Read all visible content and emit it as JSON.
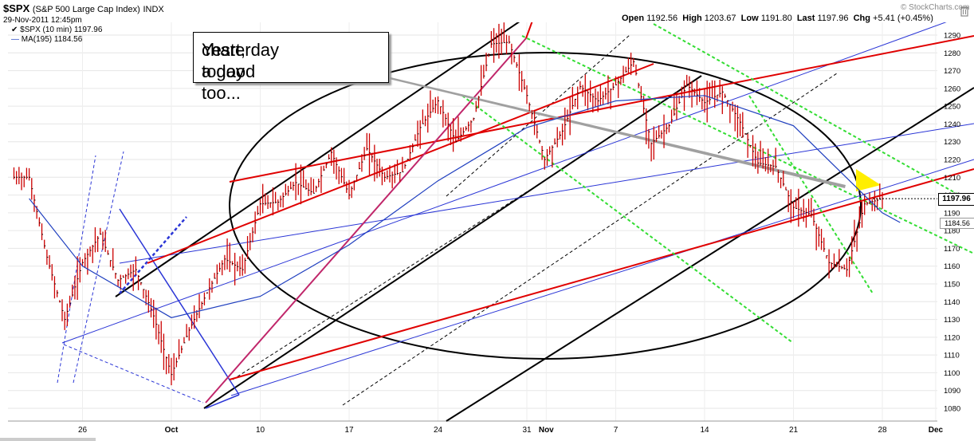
{
  "header": {
    "symbol": "$SPX",
    "description": "(S&P 500 Large Cap Index)",
    "exchange": "INDX",
    "datetime": "29-Nov-2011 12:45pm",
    "legend_price": "$SPX (10 min) 1197.96",
    "legend_ma": "MA(195) 1184.56",
    "brand": "© StockCharts.com",
    "ohlc": {
      "open_label": "Open",
      "open": "1192.56",
      "high_label": "High",
      "high": "1203.67",
      "low_label": "Low",
      "low": "1191.80",
      "last_label": "Last",
      "last": "1197.96",
      "chg_label": "Chg",
      "chg": "+5.41 (+0.45%)"
    }
  },
  "annotation": {
    "line1": "Yesterday a good",
    "line2": "chart, today too..."
  },
  "price_labels": {
    "last": "1197.96",
    "ma": "1184.56"
  },
  "colors": {
    "price": "#cc0000",
    "ma": "#1f3fbf",
    "red_channel": "#e00000",
    "blue_channel": "#2a35d6",
    "black_channel": "#000000",
    "green_channel": "#33dd33",
    "magenta_line": "#c0266a",
    "gray_arrow": "#a0a0a0",
    "highlight": "#ffee00"
  },
  "chart_data": {
    "type": "line",
    "title": "$SPX (S&P 500 Large Cap Index) INDX",
    "xlabel": "",
    "ylabel": "",
    "x_ticks": [
      "26",
      "Oct",
      "10",
      "17",
      "24",
      "31",
      "Nov",
      "7",
      "14",
      "21",
      "28",
      "Dec"
    ],
    "y_ticks": [
      1080,
      1090,
      1100,
      1110,
      1120,
      1130,
      1140,
      1150,
      1160,
      1170,
      1180,
      1190,
      1200,
      1210,
      1220,
      1230,
      1240,
      1250,
      1260,
      1270,
      1280,
      1290
    ],
    "ylim": [
      1073,
      1296
    ],
    "grid": true,
    "series": [
      {
        "name": "$SPX (10 min)",
        "style": "ohlc-bars",
        "x": [
          "Sep 21",
          "Sep 22",
          "Sep 23",
          "Sep 26",
          "Sep 27",
          "Sep 28",
          "Sep 29",
          "Sep 30",
          "Oct 3",
          "Oct 4",
          "Oct 5",
          "Oct 6",
          "Oct 7",
          "Oct 10",
          "Oct 11",
          "Oct 12",
          "Oct 13",
          "Oct 14",
          "Oct 17",
          "Oct 18",
          "Oct 19",
          "Oct 20",
          "Oct 21",
          "Oct 24",
          "Oct 25",
          "Oct 26",
          "Oct 27",
          "Oct 28",
          "Oct 31",
          "Nov 1",
          "Nov 2",
          "Nov 3",
          "Nov 4",
          "Nov 7",
          "Nov 8",
          "Nov 9",
          "Nov 10",
          "Nov 11",
          "Nov 14",
          "Nov 15",
          "Nov 16",
          "Nov 17",
          "Nov 18",
          "Nov 21",
          "Nov 22",
          "Nov 23",
          "Nov 25",
          "Nov 28",
          "Nov 29"
        ],
        "values": [
          1210,
          1165,
          1130,
          1162,
          1178,
          1152,
          1158,
          1132,
          1099,
          1124,
          1145,
          1164,
          1158,
          1195,
          1196,
          1207,
          1201,
          1224,
          1200,
          1226,
          1210,
          1213,
          1238,
          1253,
          1230,
          1243,
          1285,
          1286,
          1256,
          1220,
          1236,
          1261,
          1253,
          1262,
          1275,
          1229,
          1239,
          1262,
          1252,
          1258,
          1241,
          1218,
          1216,
          1193,
          1189,
          1162,
          1158,
          1195,
          1197.96
        ]
      },
      {
        "name": "MA(195)",
        "style": "line",
        "x": [
          "Sep 21",
          "Sep 26",
          "Oct 3",
          "Oct 10",
          "Oct 17",
          "Oct 24",
          "Oct 31",
          "Nov 7",
          "Nov 14",
          "Nov 21",
          "Nov 28",
          "Nov 29"
        ],
        "values": [
          1198,
          1160,
          1131,
          1143,
          1172,
          1208,
          1238,
          1253,
          1256,
          1239,
          1190,
          1184.56
        ]
      }
    ],
    "annotations": [
      "Yesterday a good chart, today too..."
    ]
  }
}
